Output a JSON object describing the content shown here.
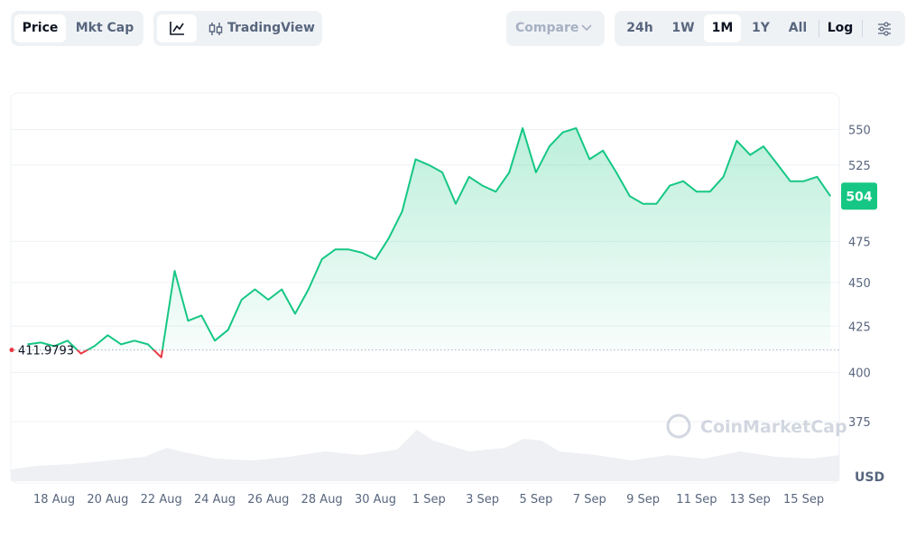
{
  "toolbar": {
    "price": "Price",
    "mkt_cap": "Mkt Cap",
    "tradingview": "TradingView",
    "compare": "Compare",
    "ranges": [
      "24h",
      "1W",
      "1M",
      "1Y",
      "All"
    ],
    "log": "Log"
  },
  "chart_data": {
    "type": "line",
    "log_scale": true,
    "color": "#16c784",
    "down_color": "#ea3943",
    "currency": "USD",
    "watermark": "CoinMarketCap",
    "baseline": 411.9793,
    "categories": [
      null,
      null,
      "18 Aug",
      null,
      null,
      null,
      "20 Aug",
      null,
      null,
      null,
      "22 Aug",
      null,
      null,
      null,
      "24 Aug",
      null,
      null,
      null,
      "26 Aug",
      null,
      null,
      null,
      "28 Aug",
      null,
      null,
      null,
      "30 Aug",
      null,
      null,
      null,
      "1 Sep",
      null,
      null,
      null,
      "3 Sep",
      null,
      null,
      null,
      "5 Sep",
      null,
      null,
      null,
      "7 Sep",
      null,
      null,
      null,
      "9 Sep",
      null,
      null,
      null,
      "11 Sep",
      null,
      null,
      null,
      "13 Sep",
      null,
      null,
      null,
      "15 Sep",
      null,
      null
    ],
    "values": [
      415,
      416,
      414,
      417,
      410,
      414,
      420,
      415,
      417,
      415,
      408,
      457,
      428,
      431,
      417,
      423,
      440,
      446,
      440,
      446,
      432,
      446,
      464,
      470,
      470,
      468,
      464,
      477,
      494,
      529,
      525,
      520,
      499,
      517,
      511,
      507,
      520,
      551,
      520,
      538,
      548,
      551,
      529,
      535,
      520,
      504,
      499,
      499,
      511,
      514,
      507,
      507,
      517,
      542,
      532,
      538,
      526,
      514,
      514,
      517,
      504
    ],
    "ylim": [
      346,
      577
    ],
    "yticks": [
      375,
      400,
      425,
      450,
      475,
      525,
      550
    ],
    "grid": true
  }
}
